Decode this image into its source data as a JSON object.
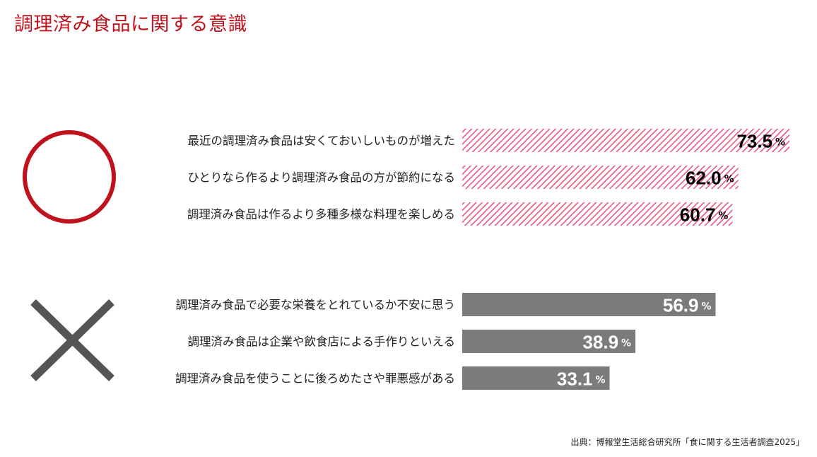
{
  "title": "調理済み食品に関する意識",
  "source": "出典：博報堂生活総合研究所「食に関する生活者調査2025」",
  "colors": {
    "accent": "#c0121c",
    "positive_stripe": "#e8517a",
    "negative_bar": "#7b7b7b"
  },
  "chart_data": [
    {
      "type": "bar",
      "orientation": "horizontal",
      "group_symbol": "〇",
      "categories": [
        "最近の調理済み食品は安くておいしいものが増えた",
        "ひとりなら作るより調理済み食品の方が節約になる",
        "調理済み食品は作るより多種多様な料理を楽しめる"
      ],
      "values": [
        73.5,
        62.0,
        60.7
      ],
      "labels": [
        "73.5",
        "62.0",
        "60.7"
      ],
      "unit": "%",
      "style": "hatched-pink"
    },
    {
      "type": "bar",
      "orientation": "horizontal",
      "group_symbol": "×",
      "categories": [
        "調理済み食品で必要な栄養をとれているか不安に思う",
        "調理済み食品は企業や飲食店による手作りといえる",
        "調理済み食品を使うことに後ろめたさや罪悪感がある"
      ],
      "values": [
        56.9,
        38.9,
        33.1
      ],
      "labels": [
        "56.9",
        "38.9",
        "33.1"
      ],
      "unit": "%",
      "style": "solid-gray"
    }
  ]
}
